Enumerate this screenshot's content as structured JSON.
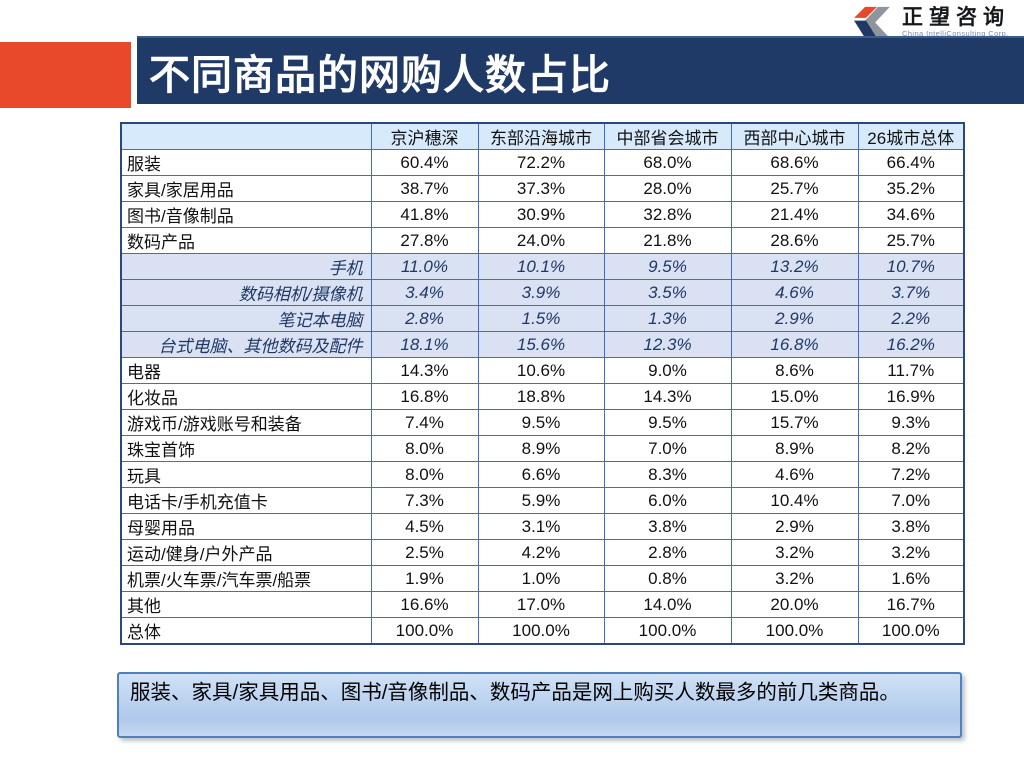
{
  "slide": {
    "title": "不同商品的网购人数占比"
  },
  "logo": {
    "name": "正望咨询",
    "subtitle": "China IntelliConsulting Corp.",
    "mark_colors": {
      "gray": "#8f959c",
      "orange": "#e8492a",
      "navy": "#1f3864"
    }
  },
  "table": {
    "columns": [
      "京沪穗深",
      "东部沿海城市",
      "中部省会城市",
      "西部中心城市",
      "26城市总体"
    ],
    "rows": [
      {
        "label": "服装",
        "style": "normal",
        "values": [
          "60.4%",
          "72.2%",
          "68.0%",
          "68.6%",
          "66.4%"
        ]
      },
      {
        "label": "家具/家居用品",
        "style": "normal",
        "values": [
          "38.7%",
          "37.3%",
          "28.0%",
          "25.7%",
          "35.2%"
        ]
      },
      {
        "label": "图书/音像制品",
        "style": "normal",
        "values": [
          "41.8%",
          "30.9%",
          "32.8%",
          "21.4%",
          "34.6%"
        ]
      },
      {
        "label": "数码产品",
        "style": "normal",
        "values": [
          "27.8%",
          "24.0%",
          "21.8%",
          "28.6%",
          "25.7%"
        ]
      },
      {
        "label": "手机",
        "style": "sub",
        "values": [
          "11.0%",
          "10.1%",
          "9.5%",
          "13.2%",
          "10.7%"
        ]
      },
      {
        "label": "数码相机/摄像机",
        "style": "sub",
        "values": [
          "3.4%",
          "3.9%",
          "3.5%",
          "4.6%",
          "3.7%"
        ]
      },
      {
        "label": "笔记本电脑",
        "style": "sub",
        "values": [
          "2.8%",
          "1.5%",
          "1.3%",
          "2.9%",
          "2.2%"
        ]
      },
      {
        "label": "台式电脑、其他数码及配件",
        "style": "sub",
        "values": [
          "18.1%",
          "15.6%",
          "12.3%",
          "16.8%",
          "16.2%"
        ]
      },
      {
        "label": "电器",
        "style": "normal",
        "values": [
          "14.3%",
          "10.6%",
          "9.0%",
          "8.6%",
          "11.7%"
        ]
      },
      {
        "label": "化妆品",
        "style": "normal",
        "values": [
          "16.8%",
          "18.8%",
          "14.3%",
          "15.0%",
          "16.9%"
        ]
      },
      {
        "label": "游戏币/游戏账号和装备",
        "style": "normal",
        "values": [
          "7.4%",
          "9.5%",
          "9.5%",
          "15.7%",
          "9.3%"
        ]
      },
      {
        "label": "珠宝首饰",
        "style": "normal",
        "values": [
          "8.0%",
          "8.9%",
          "7.0%",
          "8.9%",
          "8.2%"
        ]
      },
      {
        "label": "玩具",
        "style": "normal",
        "values": [
          "8.0%",
          "6.6%",
          "8.3%",
          "4.6%",
          "7.2%"
        ]
      },
      {
        "label": "电话卡/手机充值卡",
        "style": "normal",
        "values": [
          "7.3%",
          "5.9%",
          "6.0%",
          "10.4%",
          "7.0%"
        ]
      },
      {
        "label": "母婴用品",
        "style": "normal",
        "values": [
          "4.5%",
          "3.1%",
          "3.8%",
          "2.9%",
          "3.8%"
        ]
      },
      {
        "label": "运动/健身/户外产品",
        "style": "normal",
        "values": [
          "2.5%",
          "4.2%",
          "2.8%",
          "3.2%",
          "3.2%"
        ]
      },
      {
        "label": "机票/火车票/汽车票/船票",
        "style": "normal",
        "values": [
          "1.9%",
          "1.0%",
          "0.8%",
          "3.2%",
          "1.6%"
        ]
      },
      {
        "label": "其他",
        "style": "normal",
        "values": [
          "16.6%",
          "17.0%",
          "14.0%",
          "20.0%",
          "16.7%"
        ]
      },
      {
        "label": "总体",
        "style": "normal",
        "values": [
          "100.0%",
          "100.0%",
          "100.0%",
          "100.0%",
          "100.0%"
        ]
      }
    ]
  },
  "note": {
    "text": "服装、家具/家具用品、图书/音像制品、数码产品是网上购买人数最多的前几类商品。"
  },
  "colors": {
    "title_bar_navy": "#1f3a67",
    "accent_orange": "#e8492a",
    "table_outer_border": "#29487d",
    "table_inner_border": "#3b6bd6",
    "header_row_bg": "#d7eafc",
    "sub_row_bg": "#d9e1f2",
    "sub_row_text": "#1f3864",
    "note_box_border": "#4f81bd",
    "note_box_bg": "#bfd5ef"
  }
}
